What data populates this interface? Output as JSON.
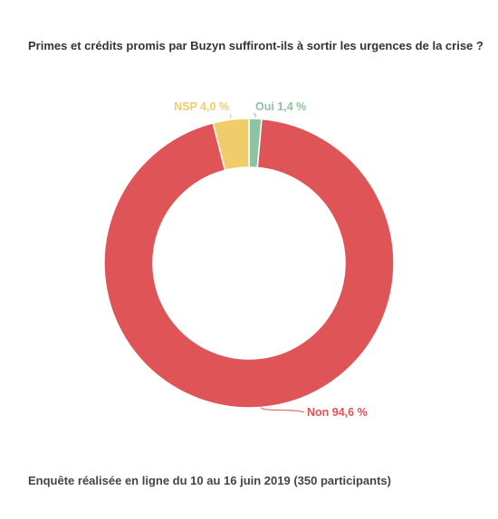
{
  "chart_data": {
    "type": "pie",
    "title": "Primes et crédits promis par Buzyn suffiront-ils à sortir les urgences de la crise ?",
    "footer": "Enquête réalisée en ligne du 10 au 16 juin 2019 (350 participants)",
    "donut": true,
    "slices": [
      {
        "label": "Oui 1,4 %",
        "category": "Oui",
        "value": 1.4,
        "color": "#8cc3a3"
      },
      {
        "label": "Non 94,6 %",
        "category": "Non",
        "value": 94.6,
        "color": "#de5457"
      },
      {
        "label": "NSP 4,0 %",
        "category": "NSP",
        "value": 4.0,
        "color": "#f0cc6a"
      }
    ]
  }
}
